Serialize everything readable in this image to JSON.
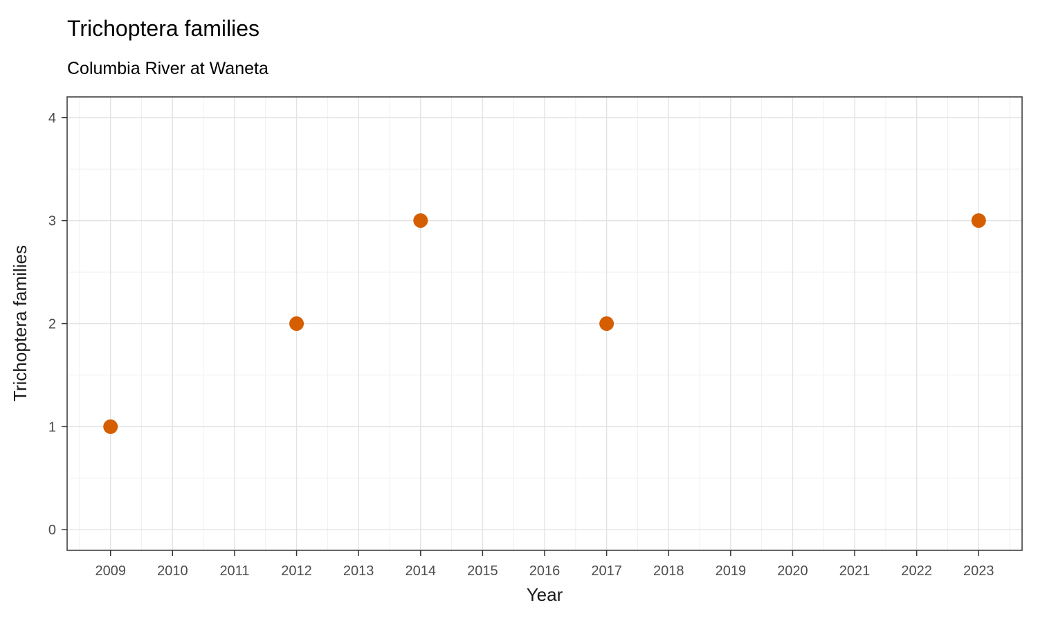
{
  "header": {
    "title": "Trichoptera families",
    "subtitle": "Columbia River at Waneta"
  },
  "chart_data": {
    "type": "scatter",
    "title": "Trichoptera families",
    "subtitle": "Columbia River at Waneta",
    "xlabel": "Year",
    "ylabel": "Trichoptera families",
    "points": [
      {
        "x": 2009,
        "y": 1
      },
      {
        "x": 2012,
        "y": 2
      },
      {
        "x": 2014,
        "y": 3
      },
      {
        "x": 2017,
        "y": 2
      },
      {
        "x": 2023,
        "y": 3
      }
    ],
    "x_ticks": [
      2009,
      2010,
      2011,
      2012,
      2013,
      2014,
      2015,
      2016,
      2017,
      2018,
      2019,
      2020,
      2021,
      2022,
      2023
    ],
    "y_ticks": [
      0,
      1,
      2,
      3,
      4
    ],
    "xlim": [
      2008.3,
      2023.7
    ],
    "ylim": [
      -0.2,
      4.2
    ],
    "x_minor_step": 0.5,
    "y_minor_step": 0.5,
    "grid": true,
    "legend": "none",
    "colors": {
      "point": "#D55E00",
      "grid_major": "#e3e3e3",
      "grid_minor": "#f0f0f0",
      "panel_border": "#333333",
      "tick_label": "#4d4d4d",
      "axis_title": "#1a1a1a",
      "title": "#000000"
    }
  }
}
